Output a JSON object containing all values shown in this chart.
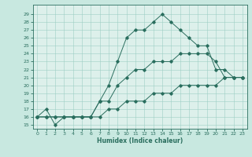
{
  "xlabel": "Humidex (Indice chaleur)",
  "ylabel_ticks": [
    15,
    16,
    17,
    18,
    19,
    20,
    21,
    22,
    23,
    24,
    25,
    26,
    27,
    28,
    29
  ],
  "xticks": [
    0,
    1,
    2,
    3,
    4,
    5,
    6,
    7,
    8,
    9,
    10,
    11,
    12,
    13,
    14,
    15,
    16,
    17,
    18,
    19,
    20,
    21,
    22,
    23
  ],
  "curve1_x": [
    0,
    1,
    2,
    3,
    4,
    5,
    6,
    7,
    8,
    9,
    10,
    11,
    12,
    13,
    14,
    15,
    16,
    17,
    18,
    19,
    20,
    21,
    22,
    23
  ],
  "curve1_y": [
    16,
    16,
    16,
    16,
    16,
    16,
    16,
    18,
    20,
    23,
    26,
    27,
    27,
    28,
    29,
    28,
    27,
    26,
    25,
    25,
    22,
    22,
    21,
    21
  ],
  "curve2_x": [
    0,
    1,
    2,
    3,
    4,
    5,
    6,
    7,
    8,
    9,
    10,
    11,
    12,
    13,
    14,
    15,
    16,
    17,
    18,
    19,
    20,
    21,
    22,
    23
  ],
  "curve2_y": [
    16,
    17,
    15,
    16,
    16,
    16,
    16,
    18,
    18,
    20,
    21,
    22,
    22,
    23,
    23,
    23,
    24,
    24,
    24,
    24,
    23,
    21,
    21,
    21
  ],
  "curve3_x": [
    0,
    1,
    2,
    3,
    4,
    5,
    6,
    7,
    8,
    9,
    10,
    11,
    12,
    13,
    14,
    15,
    16,
    17,
    18,
    19,
    20,
    21,
    22,
    23
  ],
  "curve3_y": [
    16,
    16,
    16,
    16,
    16,
    16,
    16,
    16,
    17,
    17,
    18,
    18,
    18,
    19,
    19,
    19,
    20,
    20,
    20,
    20,
    20,
    21,
    21,
    21
  ],
  "line_color": "#2a6e5e",
  "bg_color": "#c8e8e0",
  "plot_bg": "#ddf0eb",
  "grid_color": "#9ecec4",
  "xlim": [
    -0.5,
    23.5
  ],
  "ylim": [
    14.5,
    30.2
  ]
}
